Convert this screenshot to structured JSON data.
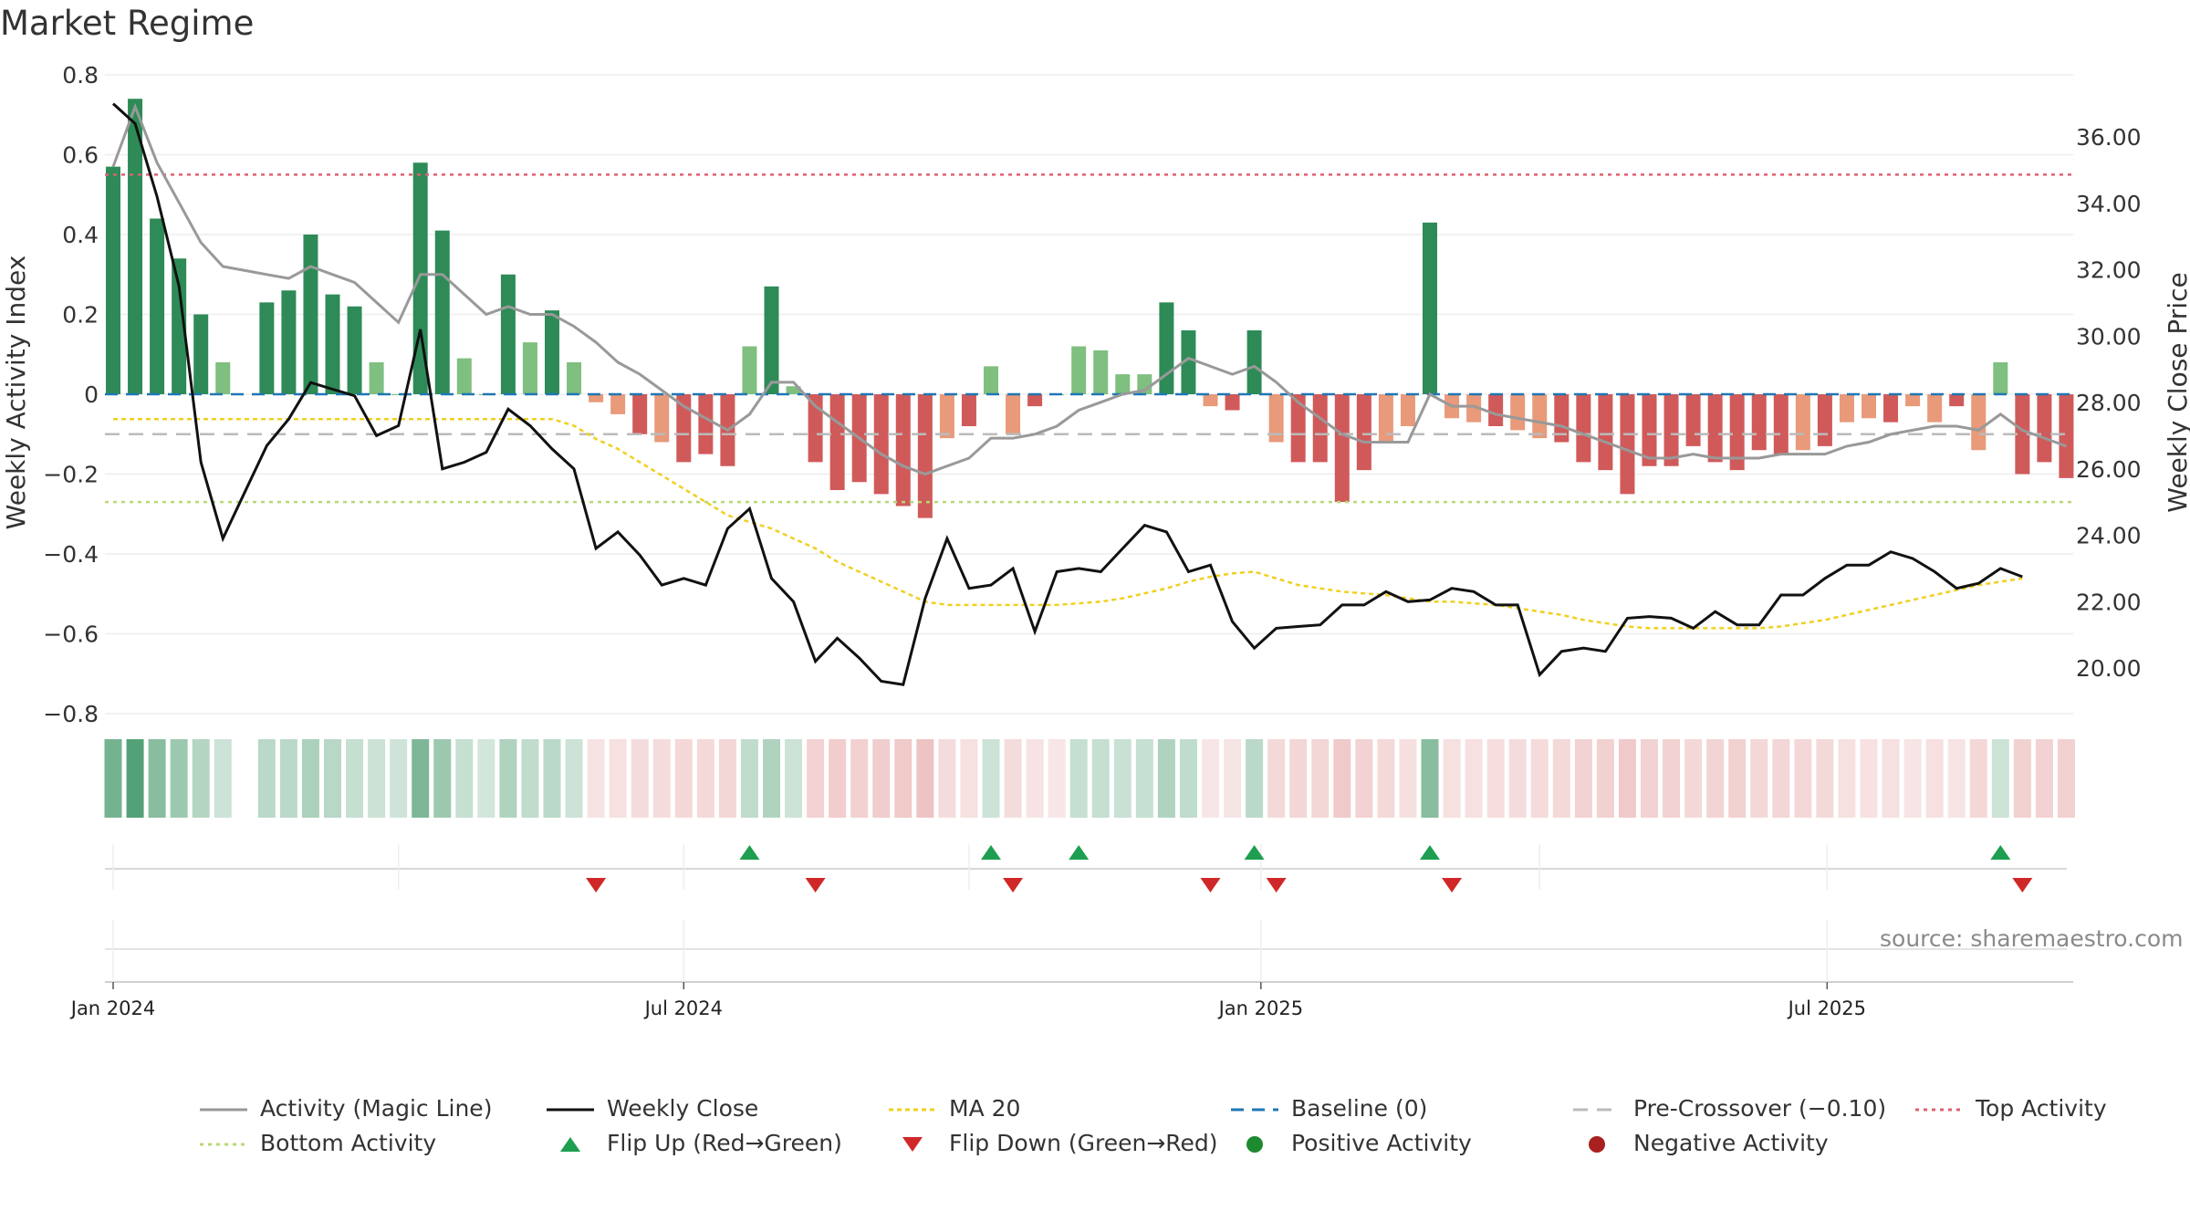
{
  "title": "Market Regime",
  "source": "source: sharemaestro.com",
  "colors": {
    "pos_strong": "#2e8b57",
    "pos_light": "#7fbf7f",
    "neg_strong": "#d05a5a",
    "neg_light": "#e89a7a",
    "magic": "#999999",
    "close": "#111111",
    "ma": "#f0d020",
    "baseline": "#1f77b4",
    "pre": "#bbbbbb",
    "top": "#e06070",
    "bottom": "#b8d878",
    "flip_up": "#1e9e50",
    "flip_down": "#d02828"
  },
  "chart_data": {
    "type": "bar",
    "title": "Market Regime",
    "ylabel": "Weekly Activity Index",
    "y2label": "Weekly Close Price",
    "ylim": [
      -0.8,
      0.8
    ],
    "y2lim": [
      18.6,
      38.0
    ],
    "y_ticks": [
      -0.8,
      -0.6,
      -0.4,
      -0.2,
      0,
      0.2,
      0.4,
      0.6,
      0.8
    ],
    "y_tick_labels": [
      "−0.8",
      "−0.6",
      "−0.4",
      "−0.2",
      "0",
      "0.2",
      "0.4",
      "0.6",
      "0.8"
    ],
    "y2_ticks": [
      20,
      22,
      24,
      26,
      28,
      30,
      32,
      34,
      36
    ],
    "y2_tick_labels": [
      "20.00",
      "22.00",
      "24.00",
      "26.00",
      "28.00",
      "30.00",
      "32.00",
      "34.00",
      "36.00"
    ],
    "x_ticks": [
      {
        "week": 0,
        "label": "Jan 2024"
      },
      {
        "week": 26,
        "label": "Jul 2024"
      },
      {
        "week": 52.3,
        "label": "Jan 2025"
      },
      {
        "week": 78.1,
        "label": "Jul 2025"
      }
    ],
    "reference_lines": {
      "baseline": 0,
      "pre_crossover": -0.1,
      "top": 0.55,
      "bottom": -0.27
    },
    "activity": [
      0.57,
      0.74,
      0.44,
      0.34,
      0.2,
      0.08,
      null,
      0.23,
      0.26,
      0.4,
      0.25,
      0.22,
      0.08,
      0.0,
      0.58,
      0.41,
      0.09,
      0.0,
      0.3,
      0.13,
      0.21,
      0.08,
      -0.02,
      -0.05,
      -0.1,
      -0.12,
      -0.17,
      -0.15,
      -0.18,
      0.12,
      0.27,
      0.02,
      -0.17,
      -0.24,
      -0.22,
      -0.25,
      -0.28,
      -0.31,
      -0.11,
      -0.08,
      0.07,
      -0.1,
      -0.03,
      0.0,
      0.12,
      0.11,
      0.05,
      0.05,
      0.23,
      0.16,
      -0.03,
      -0.04,
      0.16,
      -0.12,
      -0.17,
      -0.17,
      -0.27,
      -0.19,
      -0.12,
      -0.08,
      0.43,
      -0.06,
      -0.07,
      -0.08,
      -0.09,
      -0.11,
      -0.12,
      -0.17,
      -0.19,
      -0.25,
      -0.18,
      -0.18,
      -0.13,
      -0.17,
      -0.19,
      -0.14,
      -0.15,
      -0.14,
      -0.13,
      -0.07,
      -0.06,
      -0.07,
      -0.03,
      -0.07,
      -0.03,
      -0.14,
      0.08,
      -0.2,
      -0.17,
      -0.21
    ],
    "magic_line": [
      0.57,
      0.72,
      0.58,
      0.48,
      0.38,
      0.32,
      0.31,
      0.3,
      0.29,
      0.32,
      0.3,
      0.28,
      0.23,
      0.18,
      0.3,
      0.3,
      0.25,
      0.2,
      0.22,
      0.2,
      0.2,
      0.17,
      0.13,
      0.08,
      0.05,
      0.01,
      -0.03,
      -0.06,
      -0.09,
      -0.05,
      0.03,
      0.03,
      -0.03,
      -0.07,
      -0.11,
      -0.15,
      -0.18,
      -0.2,
      -0.18,
      -0.16,
      -0.11,
      -0.11,
      -0.1,
      -0.08,
      -0.04,
      -0.02,
      0.0,
      0.01,
      0.05,
      0.09,
      0.07,
      0.05,
      0.07,
      0.03,
      -0.02,
      -0.06,
      -0.1,
      -0.12,
      -0.12,
      -0.12,
      0.0,
      -0.03,
      -0.03,
      -0.05,
      -0.06,
      -0.07,
      -0.08,
      -0.1,
      -0.12,
      -0.14,
      -0.16,
      -0.16,
      -0.15,
      -0.16,
      -0.16,
      -0.16,
      -0.15,
      -0.15,
      -0.15,
      -0.13,
      -0.12,
      -0.1,
      -0.09,
      -0.08,
      -0.08,
      -0.09,
      -0.05,
      -0.09,
      -0.11,
      -0.13
    ],
    "weekly_close": [
      37.0,
      36.4,
      34.2,
      31.5,
      26.2,
      23.9,
      25.3,
      26.7,
      27.5,
      28.6,
      28.4,
      28.2,
      27.0,
      27.3,
      30.2,
      26.0,
      26.2,
      26.5,
      27.8,
      27.3,
      26.6,
      26.0,
      23.6,
      24.1,
      23.4,
      22.5,
      22.7,
      22.5,
      24.2,
      24.8,
      22.7,
      22.0,
      20.2,
      20.9,
      20.3,
      19.6,
      19.5,
      22.1,
      23.9,
      22.4,
      22.5,
      23.0,
      21.1,
      22.9,
      23.0,
      22.9,
      23.6,
      24.3,
      24.1,
      22.9,
      23.1,
      21.4,
      20.6,
      21.2,
      21.25,
      21.3,
      21.9,
      21.9,
      22.3,
      22.0,
      22.05,
      22.4,
      22.3,
      21.9,
      21.9,
      19.8,
      20.5,
      20.6,
      20.5,
      21.5,
      21.55,
      21.5,
      21.2,
      21.7,
      21.3,
      21.3,
      22.2,
      22.2,
      22.7,
      23.1,
      23.1,
      23.5,
      23.3,
      22.9,
      22.4,
      22.55,
      23.0,
      22.75
    ],
    "ma20": [
      27.5,
      27.5,
      27.5,
      27.5,
      27.5,
      27.5,
      27.5,
      27.5,
      27.5,
      27.5,
      27.5,
      27.5,
      27.5,
      27.5,
      27.5,
      27.5,
      27.5,
      27.5,
      27.5,
      27.5,
      27.5,
      27.3,
      26.9,
      26.6,
      26.2,
      25.8,
      25.4,
      25.0,
      24.6,
      24.4,
      24.2,
      23.9,
      23.6,
      23.2,
      22.9,
      22.6,
      22.3,
      22.0,
      21.9,
      21.9,
      21.9,
      21.9,
      21.9,
      21.9,
      21.95,
      22.0,
      22.1,
      22.25,
      22.4,
      22.6,
      22.75,
      22.85,
      22.9,
      22.7,
      22.5,
      22.4,
      22.3,
      22.25,
      22.2,
      22.1,
      22.0,
      22.0,
      21.95,
      21.9,
      21.8,
      21.7,
      21.6,
      21.45,
      21.35,
      21.25,
      21.2,
      21.2,
      21.2,
      21.2,
      21.2,
      21.2,
      21.25,
      21.35,
      21.45,
      21.6,
      21.75,
      21.9,
      22.05,
      22.2,
      22.35,
      22.5,
      22.6,
      22.7
    ],
    "flip_up_weeks": [
      29,
      40,
      44,
      52,
      60,
      86
    ],
    "flip_down_weeks": [
      22,
      32,
      41,
      50,
      53,
      61,
      87
    ],
    "band": [
      {
        "week": 0,
        "level": 0.7
      },
      {
        "week": 1,
        "level": 0.85
      },
      {
        "week": 2,
        "level": 0.6
      },
      {
        "week": 3,
        "level": 0.5
      },
      {
        "week": 4,
        "level": 0.38
      },
      {
        "week": 5,
        "level": 0.25
      },
      {
        "week": 7,
        "level": 0.35
      },
      {
        "week": 8,
        "level": 0.35
      },
      {
        "week": 9,
        "level": 0.42
      },
      {
        "week": 10,
        "level": 0.36
      },
      {
        "week": 11,
        "level": 0.3
      },
      {
        "week": 12,
        "level": 0.26
      },
      {
        "week": 13,
        "level": 0.24
      },
      {
        "week": 14,
        "level": 0.65
      },
      {
        "week": 15,
        "level": 0.5
      },
      {
        "week": 16,
        "level": 0.3
      },
      {
        "week": 17,
        "level": 0.22
      },
      {
        "week": 18,
        "level": 0.4
      },
      {
        "week": 19,
        "level": 0.32
      },
      {
        "week": 20,
        "level": 0.35
      },
      {
        "week": 21,
        "level": 0.25
      },
      {
        "week": 22,
        "level": -0.18
      },
      {
        "week": 23,
        "level": -0.2
      },
      {
        "week": 24,
        "level": -0.22
      },
      {
        "week": 25,
        "level": -0.22
      },
      {
        "week": 26,
        "level": -0.25
      },
      {
        "week": 27,
        "level": -0.24
      },
      {
        "week": 28,
        "level": -0.26
      },
      {
        "week": 29,
        "level": 0.32
      },
      {
        "week": 30,
        "level": 0.4
      },
      {
        "week": 31,
        "level": 0.25
      },
      {
        "week": 32,
        "level": -0.28
      },
      {
        "week": 33,
        "level": -0.32
      },
      {
        "week": 34,
        "level": -0.3
      },
      {
        "week": 35,
        "level": -0.32
      },
      {
        "week": 36,
        "level": -0.35
      },
      {
        "week": 37,
        "level": -0.38
      },
      {
        "week": 38,
        "level": -0.22
      },
      {
        "week": 39,
        "level": -0.2
      },
      {
        "week": 40,
        "level": 0.25
      },
      {
        "week": 41,
        "level": -0.22
      },
      {
        "week": 42,
        "level": -0.18
      },
      {
        "week": 43,
        "level": -0.16
      },
      {
        "week": 44,
        "level": 0.3
      },
      {
        "week": 45,
        "level": 0.3
      },
      {
        "week": 46,
        "level": 0.27
      },
      {
        "week": 47,
        "level": 0.28
      },
      {
        "week": 48,
        "level": 0.4
      },
      {
        "week": 49,
        "level": 0.32
      },
      {
        "week": 50,
        "level": -0.16
      },
      {
        "week": 51,
        "level": -0.17
      },
      {
        "week": 52,
        "level": 0.35
      },
      {
        "week": 53,
        "level": -0.24
      },
      {
        "week": 54,
        "level": -0.26
      },
      {
        "week": 55,
        "level": -0.26
      },
      {
        "week": 56,
        "level": -0.34
      },
      {
        "week": 57,
        "level": -0.28
      },
      {
        "week": 58,
        "level": -0.24
      },
      {
        "week": 59,
        "level": -0.2
      },
      {
        "week": 60,
        "level": 0.6
      },
      {
        "week": 61,
        "level": -0.2
      },
      {
        "week": 62,
        "level": -0.2
      },
      {
        "week": 63,
        "level": -0.21
      },
      {
        "week": 64,
        "level": -0.22
      },
      {
        "week": 65,
        "level": -0.23
      },
      {
        "week": 66,
        "level": -0.24
      },
      {
        "week": 67,
        "level": -0.28
      },
      {
        "week": 68,
        "level": -0.3
      },
      {
        "week": 69,
        "level": -0.34
      },
      {
        "week": 70,
        "level": -0.28
      },
      {
        "week": 71,
        "level": -0.28
      },
      {
        "week": 72,
        "level": -0.25
      },
      {
        "week": 73,
        "level": -0.27
      },
      {
        "week": 74,
        "level": -0.29
      },
      {
        "week": 75,
        "level": -0.25
      },
      {
        "week": 76,
        "level": -0.26
      },
      {
        "week": 77,
        "level": -0.25
      },
      {
        "week": 78,
        "level": -0.24
      },
      {
        "week": 79,
        "level": -0.2
      },
      {
        "week": 80,
        "level": -0.19
      },
      {
        "week": 81,
        "level": -0.2
      },
      {
        "week": 82,
        "level": -0.17
      },
      {
        "week": 83,
        "level": -0.2
      },
      {
        "week": 84,
        "level": -0.17
      },
      {
        "week": 85,
        "level": -0.25
      },
      {
        "week": 86,
        "level": 0.25
      },
      {
        "week": 87,
        "level": -0.3
      },
      {
        "week": 88,
        "level": -0.28
      },
      {
        "week": 89,
        "level": -0.3
      }
    ]
  },
  "legend": [
    {
      "key": "magic",
      "label": "Activity (Magic Line)"
    },
    {
      "key": "close",
      "label": "Weekly Close"
    },
    {
      "key": "ma",
      "label": "MA 20"
    },
    {
      "key": "baseline",
      "label": "Baseline (0)"
    },
    {
      "key": "pre",
      "label": "Pre-Crossover (−0.10)"
    },
    {
      "key": "top",
      "label": "Top Activity"
    },
    {
      "key": "bottom",
      "label": "Bottom Activity"
    },
    {
      "key": "flip_up",
      "label": "Flip Up (Red→Green)"
    },
    {
      "key": "flip_down",
      "label": "Flip Down (Green→Red)"
    },
    {
      "key": "pos",
      "label": "Positive Activity"
    },
    {
      "key": "neg",
      "label": "Negative Activity"
    }
  ]
}
